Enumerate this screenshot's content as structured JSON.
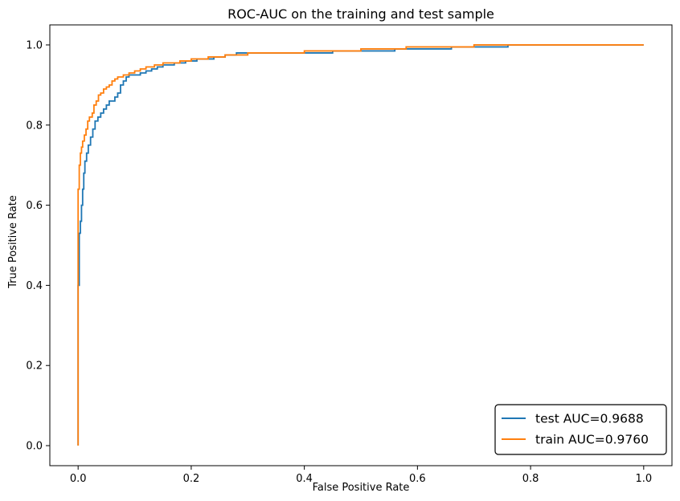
{
  "chart_data": {
    "type": "line",
    "title": "ROC-AUC on the training and test sample",
    "xlabel": "False Positive Rate",
    "ylabel": "True Positive Rate",
    "xlim": [
      -0.05,
      1.05
    ],
    "ylim": [
      -0.05,
      1.05
    ],
    "xticks": [
      "0.0",
      "0.2",
      "0.4",
      "0.6",
      "0.8",
      "1.0"
    ],
    "yticks": [
      "0.0",
      "0.2",
      "0.4",
      "0.6",
      "0.8",
      "1.0"
    ],
    "grid": false,
    "legend_position": "lower-right",
    "series": [
      {
        "name": "test AUC=0.9688",
        "color": "#1f77b4",
        "points": [
          [
            0,
            0
          ],
          [
            0,
            0.4
          ],
          [
            0.002,
            0.4
          ],
          [
            0.002,
            0.53
          ],
          [
            0.004,
            0.53
          ],
          [
            0.004,
            0.56
          ],
          [
            0.006,
            0.56
          ],
          [
            0.006,
            0.6
          ],
          [
            0.008,
            0.6
          ],
          [
            0.008,
            0.64
          ],
          [
            0.01,
            0.64
          ],
          [
            0.01,
            0.68
          ],
          [
            0.012,
            0.68
          ],
          [
            0.012,
            0.71
          ],
          [
            0.015,
            0.71
          ],
          [
            0.015,
            0.73
          ],
          [
            0.018,
            0.73
          ],
          [
            0.018,
            0.75
          ],
          [
            0.022,
            0.75
          ],
          [
            0.022,
            0.77
          ],
          [
            0.026,
            0.77
          ],
          [
            0.026,
            0.79
          ],
          [
            0.03,
            0.79
          ],
          [
            0.03,
            0.81
          ],
          [
            0.035,
            0.81
          ],
          [
            0.035,
            0.82
          ],
          [
            0.04,
            0.82
          ],
          [
            0.04,
            0.83
          ],
          [
            0.045,
            0.83
          ],
          [
            0.045,
            0.84
          ],
          [
            0.05,
            0.84
          ],
          [
            0.05,
            0.85
          ],
          [
            0.055,
            0.85
          ],
          [
            0.055,
            0.86
          ],
          [
            0.065,
            0.86
          ],
          [
            0.065,
            0.87
          ],
          [
            0.07,
            0.87
          ],
          [
            0.07,
            0.88
          ],
          [
            0.075,
            0.88
          ],
          [
            0.075,
            0.9
          ],
          [
            0.08,
            0.9
          ],
          [
            0.08,
            0.91
          ],
          [
            0.085,
            0.91
          ],
          [
            0.085,
            0.92
          ],
          [
            0.09,
            0.92
          ],
          [
            0.09,
            0.925
          ],
          [
            0.11,
            0.925
          ],
          [
            0.11,
            0.93
          ],
          [
            0.12,
            0.93
          ],
          [
            0.12,
            0.935
          ],
          [
            0.13,
            0.935
          ],
          [
            0.13,
            0.94
          ],
          [
            0.14,
            0.94
          ],
          [
            0.14,
            0.945
          ],
          [
            0.15,
            0.945
          ],
          [
            0.15,
            0.95
          ],
          [
            0.17,
            0.95
          ],
          [
            0.17,
            0.955
          ],
          [
            0.19,
            0.955
          ],
          [
            0.19,
            0.96
          ],
          [
            0.21,
            0.96
          ],
          [
            0.21,
            0.965
          ],
          [
            0.24,
            0.965
          ],
          [
            0.24,
            0.97
          ],
          [
            0.26,
            0.97
          ],
          [
            0.26,
            0.975
          ],
          [
            0.28,
            0.975
          ],
          [
            0.28,
            0.98
          ],
          [
            0.45,
            0.98
          ],
          [
            0.45,
            0.985
          ],
          [
            0.56,
            0.985
          ],
          [
            0.56,
            0.99
          ],
          [
            0.66,
            0.99
          ],
          [
            0.66,
            0.995
          ],
          [
            0.76,
            0.995
          ],
          [
            0.76,
            1.0
          ],
          [
            1.0,
            1.0
          ]
        ]
      },
      {
        "name": "train AUC=0.9760",
        "color": "#ff7f0e",
        "points": [
          [
            0,
            0
          ],
          [
            0,
            0.64
          ],
          [
            0.002,
            0.64
          ],
          [
            0.002,
            0.7
          ],
          [
            0.004,
            0.7
          ],
          [
            0.004,
            0.73
          ],
          [
            0.006,
            0.73
          ],
          [
            0.006,
            0.745
          ],
          [
            0.008,
            0.745
          ],
          [
            0.008,
            0.76
          ],
          [
            0.011,
            0.76
          ],
          [
            0.011,
            0.775
          ],
          [
            0.014,
            0.775
          ],
          [
            0.014,
            0.79
          ],
          [
            0.017,
            0.79
          ],
          [
            0.017,
            0.81
          ],
          [
            0.02,
            0.81
          ],
          [
            0.02,
            0.82
          ],
          [
            0.025,
            0.82
          ],
          [
            0.025,
            0.83
          ],
          [
            0.028,
            0.83
          ],
          [
            0.028,
            0.85
          ],
          [
            0.032,
            0.85
          ],
          [
            0.032,
            0.86
          ],
          [
            0.036,
            0.86
          ],
          [
            0.036,
            0.875
          ],
          [
            0.04,
            0.875
          ],
          [
            0.04,
            0.88
          ],
          [
            0.045,
            0.88
          ],
          [
            0.045,
            0.89
          ],
          [
            0.05,
            0.89
          ],
          [
            0.05,
            0.895
          ],
          [
            0.055,
            0.895
          ],
          [
            0.055,
            0.9
          ],
          [
            0.06,
            0.9
          ],
          [
            0.06,
            0.91
          ],
          [
            0.065,
            0.91
          ],
          [
            0.065,
            0.915
          ],
          [
            0.07,
            0.915
          ],
          [
            0.07,
            0.92
          ],
          [
            0.08,
            0.92
          ],
          [
            0.08,
            0.925
          ],
          [
            0.09,
            0.925
          ],
          [
            0.09,
            0.93
          ],
          [
            0.1,
            0.93
          ],
          [
            0.1,
            0.935
          ],
          [
            0.11,
            0.935
          ],
          [
            0.11,
            0.94
          ],
          [
            0.12,
            0.94
          ],
          [
            0.12,
            0.945
          ],
          [
            0.135,
            0.945
          ],
          [
            0.135,
            0.95
          ],
          [
            0.15,
            0.95
          ],
          [
            0.15,
            0.955
          ],
          [
            0.18,
            0.955
          ],
          [
            0.18,
            0.96
          ],
          [
            0.2,
            0.96
          ],
          [
            0.2,
            0.965
          ],
          [
            0.23,
            0.965
          ],
          [
            0.23,
            0.97
          ],
          [
            0.26,
            0.97
          ],
          [
            0.26,
            0.975
          ],
          [
            0.3,
            0.975
          ],
          [
            0.3,
            0.98
          ],
          [
            0.4,
            0.98
          ],
          [
            0.4,
            0.985
          ],
          [
            0.5,
            0.985
          ],
          [
            0.5,
            0.99
          ],
          [
            0.58,
            0.99
          ],
          [
            0.58,
            0.995
          ],
          [
            0.7,
            0.995
          ],
          [
            0.7,
            1.0
          ],
          [
            1.0,
            1.0
          ]
        ]
      }
    ]
  }
}
